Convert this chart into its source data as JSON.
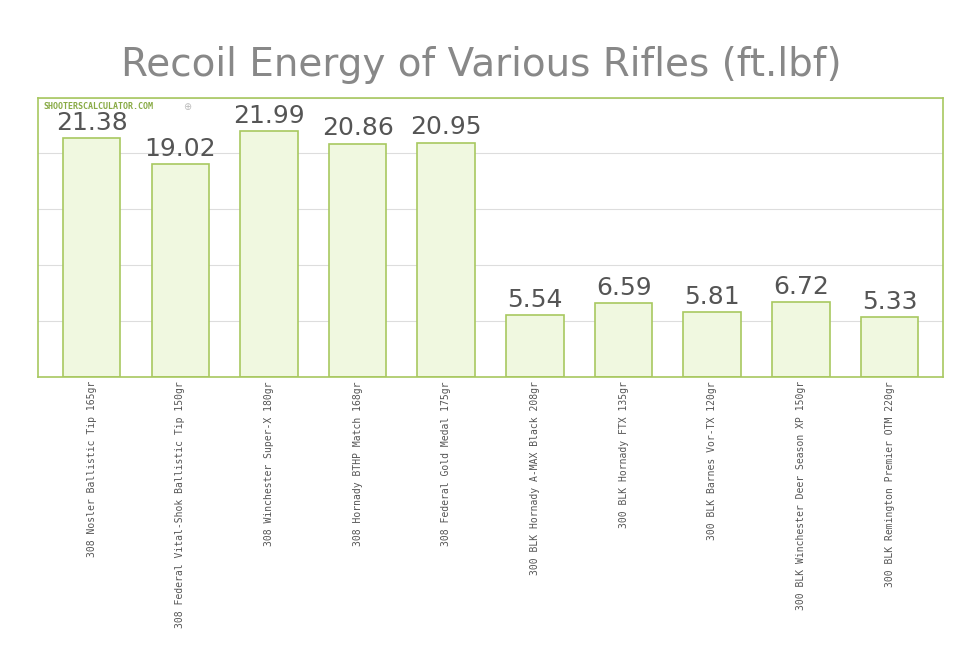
{
  "title": "Recoil Energy of Various Rifles (ft.lbf)",
  "title_color": "#888888",
  "title_fontsize": 28,
  "watermark": "SHOOTERSCALCULATOR.COM",
  "categories": [
    "308 Nosler Ballistic Tip 165gr",
    "308 Federal Vital-Shok Ballistic Tip 150gr",
    "308 Winchester Super-X 180gr",
    "308 Hornady BTHP Match 168gr",
    "308 Federal Gold Medal 175gr",
    "300 BLK Hornady A-MAX Black 208gr",
    "300 BLK Hornady FTX 135gr",
    "300 BLK Barnes Vor-TX 120gr",
    "300 BLK Winchester Deer Season XP 150gr",
    "300 BLK Remington Premier OTM 220gr"
  ],
  "values": [
    21.38,
    19.02,
    21.99,
    20.86,
    20.95,
    5.54,
    6.59,
    5.81,
    6.72,
    5.33
  ],
  "bar_color": "#f0f8e0",
  "bar_edge_color": "#a8c860",
  "bar_edge_width": 1.2,
  "value_label_color": "#555555",
  "value_label_fontsize": 18,
  "watermark_color": "#88aa44",
  "watermark_fontsize": 6,
  "axis_label_fontsize": 7,
  "ylim": [
    0,
    25
  ],
  "background_color": "#ffffff",
  "plot_bg_color": "#ffffff",
  "grid_color": "#dddddd",
  "spine_color": "#a8c860",
  "grid_linewidth": 0.8
}
